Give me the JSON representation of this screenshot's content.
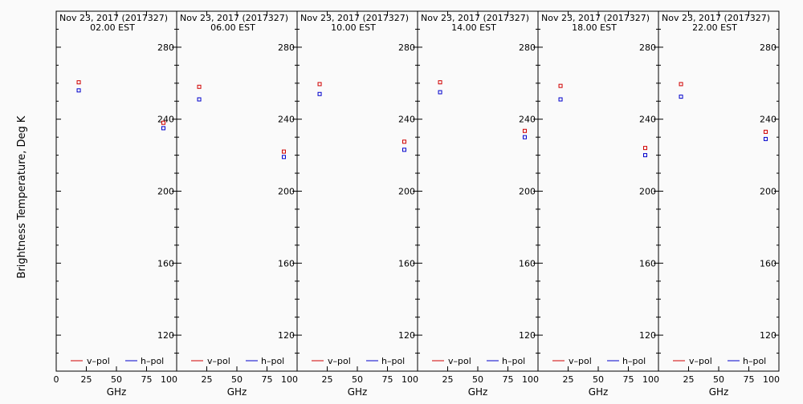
{
  "ylabel": "Brightness Temperature, Deg K",
  "colors": {
    "vpol": "#d00000",
    "hpol": "#0000cc",
    "axis": "#000000"
  },
  "chart_data": [
    {
      "type": "scatter",
      "title_line1": "Nov 23, 2017 (2017327)",
      "title_line2": "02.00 EST",
      "xlabel": "GHz",
      "xlim": [
        0,
        100
      ],
      "ylim": [
        100,
        300
      ],
      "x_ticks": [
        "0",
        "25",
        "50",
        "75",
        "100"
      ],
      "y_ticks": [
        "120",
        "160",
        "200",
        "240",
        "280"
      ],
      "legend": [
        "v–pol",
        "h–pol"
      ],
      "series": [
        {
          "name": "v–pol",
          "x": [
            18.7,
            89
          ],
          "y": [
            260.5,
            238
          ]
        },
        {
          "name": "h–pol",
          "x": [
            18.7,
            89
          ],
          "y": [
            256,
            235
          ]
        }
      ]
    },
    {
      "type": "scatter",
      "title_line1": "Nov 23, 2017 (2017327)",
      "title_line2": "06.00 EST",
      "xlabel": "GHz",
      "xlim": [
        0,
        100
      ],
      "ylim": [
        100,
        300
      ],
      "x_ticks": [
        "",
        "25",
        "50",
        "75",
        "100"
      ],
      "y_ticks": [
        "120",
        "160",
        "200",
        "240",
        "280"
      ],
      "legend": [
        "v–pol",
        "h–pol"
      ],
      "series": [
        {
          "name": "v–pol",
          "x": [
            18.7,
            89
          ],
          "y": [
            258,
            222
          ]
        },
        {
          "name": "h–pol",
          "x": [
            18.7,
            89
          ],
          "y": [
            251,
            219
          ]
        }
      ]
    },
    {
      "type": "scatter",
      "title_line1": "Nov 23, 2017 (2017327)",
      "title_line2": "10.00 EST",
      "xlabel": "GHz",
      "xlim": [
        0,
        100
      ],
      "ylim": [
        100,
        300
      ],
      "x_ticks": [
        "",
        "25",
        "50",
        "75",
        "100"
      ],
      "y_ticks": [
        "120",
        "160",
        "200",
        "240",
        "280"
      ],
      "legend": [
        "v–pol",
        "h–pol"
      ],
      "series": [
        {
          "name": "v–pol",
          "x": [
            18.7,
            89
          ],
          "y": [
            259.5,
            227.5
          ]
        },
        {
          "name": "h–pol",
          "x": [
            18.7,
            89
          ],
          "y": [
            254,
            223
          ]
        }
      ]
    },
    {
      "type": "scatter",
      "title_line1": "Nov 23, 2017 (2017327)",
      "title_line2": "14.00 EST",
      "xlabel": "GHz",
      "xlim": [
        0,
        100
      ],
      "ylim": [
        100,
        300
      ],
      "x_ticks": [
        "",
        "25",
        "50",
        "75",
        "100"
      ],
      "y_ticks": [
        "120",
        "160",
        "200",
        "240",
        "280"
      ],
      "legend": [
        "v–pol",
        "h–pol"
      ],
      "series": [
        {
          "name": "v–pol",
          "x": [
            18.7,
            89
          ],
          "y": [
            260.5,
            233.5
          ]
        },
        {
          "name": "h–pol",
          "x": [
            18.7,
            89
          ],
          "y": [
            255,
            230
          ]
        }
      ]
    },
    {
      "type": "scatter",
      "title_line1": "Nov 23, 2017 (2017327)",
      "title_line2": "18.00 EST",
      "xlabel": "GHz",
      "xlim": [
        0,
        100
      ],
      "ylim": [
        100,
        300
      ],
      "x_ticks": [
        "",
        "25",
        "50",
        "75",
        "100"
      ],
      "y_ticks": [
        "120",
        "160",
        "200",
        "240",
        "280"
      ],
      "legend": [
        "v–pol",
        "h–pol"
      ],
      "series": [
        {
          "name": "v–pol",
          "x": [
            18.7,
            89
          ],
          "y": [
            258.5,
            224
          ]
        },
        {
          "name": "h–pol",
          "x": [
            18.7,
            89
          ],
          "y": [
            251,
            220
          ]
        }
      ]
    },
    {
      "type": "scatter",
      "title_line1": "Nov 23, 2017 (2017327)",
      "title_line2": "22.00 EST",
      "xlabel": "GHz",
      "xlim": [
        0,
        100
      ],
      "ylim": [
        100,
        300
      ],
      "x_ticks": [
        "",
        "25",
        "50",
        "75",
        "100"
      ],
      "y_ticks": [
        "120",
        "160",
        "200",
        "240",
        "280"
      ],
      "legend": [
        "v–pol",
        "h–pol"
      ],
      "series": [
        {
          "name": "v–pol",
          "x": [
            18.7,
            89
          ],
          "y": [
            259.5,
            233
          ]
        },
        {
          "name": "h–pol",
          "x": [
            18.7,
            89
          ],
          "y": [
            252.5,
            229
          ]
        }
      ]
    }
  ]
}
